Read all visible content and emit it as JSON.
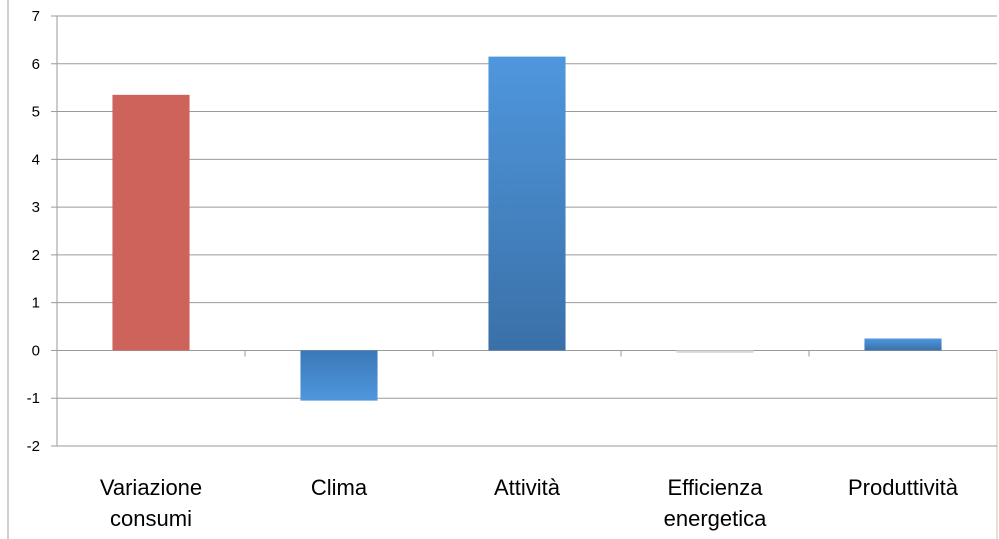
{
  "chart_data": {
    "type": "bar",
    "title": "",
    "xlabel": "",
    "ylabel": "",
    "ylim": [
      -2,
      7
    ],
    "yticks": [
      -2,
      -1,
      0,
      1,
      2,
      3,
      4,
      5,
      6,
      7
    ],
    "grid": true,
    "legend": "none",
    "categories": [
      [
        "Variazione",
        "consumi"
      ],
      [
        "Clima"
      ],
      [
        "Attività"
      ],
      [
        "Efficienza",
        "energetica"
      ],
      [
        "Produttività"
      ]
    ],
    "values": [
      5.35,
      -1.05,
      6.15,
      -0.05,
      0.25
    ],
    "colors": {
      "Variazione consumi": "#cd635b",
      "Clima": "#4a8fd6",
      "Attività": "#4a8fd6",
      "Efficienza energetica": "#d8d8d8",
      "Produttività": "#4a8fd6"
    }
  }
}
